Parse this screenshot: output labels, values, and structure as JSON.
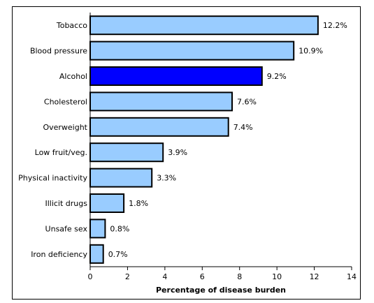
{
  "chart_data": {
    "type": "bar",
    "orientation": "horizontal",
    "categories": [
      "Tobacco",
      "Blood pressure",
      "Alcohol",
      "Cholesterol",
      "Overweight",
      "Low fruit/veg.",
      "Physical inactivity",
      "Illicit drugs",
      "Unsafe sex",
      "Iron deficiency"
    ],
    "values": [
      12.2,
      10.9,
      9.2,
      7.6,
      7.4,
      3.9,
      3.3,
      1.8,
      0.8,
      0.7
    ],
    "value_labels": [
      "12.2%",
      "10.9%",
      "9.2%",
      "7.6%",
      "7.4%",
      "3.9%",
      "3.3%",
      "1.8%",
      "0.8%",
      "0.7%"
    ],
    "highlight_index": 2,
    "colors": {
      "default": "#99CCFF",
      "highlight": "#0000FF",
      "border": "#000000"
    },
    "xlabel": "Percentage of disease burden",
    "ylabel": "",
    "title": "",
    "xlim": [
      0,
      14
    ],
    "xticks": [
      0,
      2,
      4,
      6,
      8,
      10,
      12,
      14
    ],
    "grid": false,
    "legend": "none"
  }
}
